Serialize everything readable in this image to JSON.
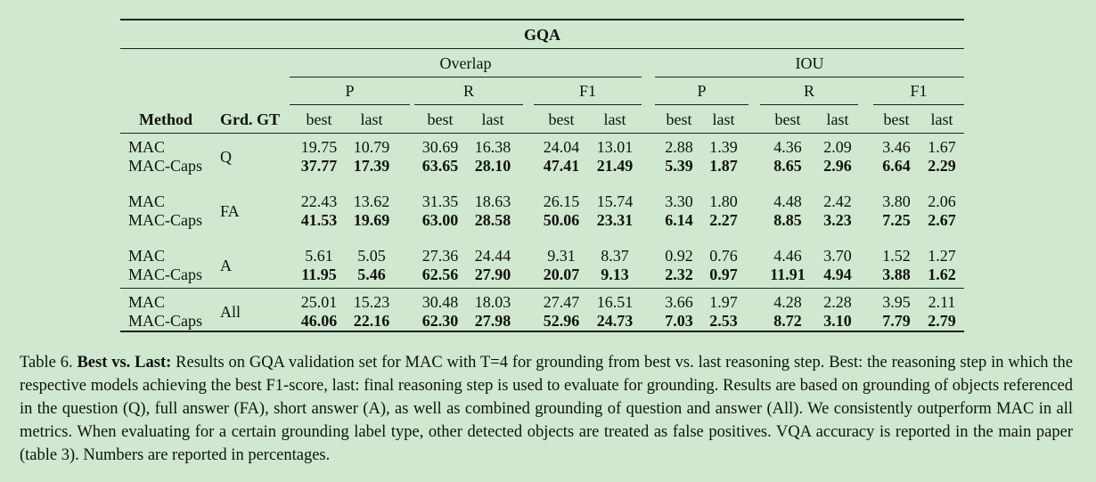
{
  "dataset": "GQA",
  "groups": [
    "Overlap",
    "IOU"
  ],
  "metrics": [
    "P",
    "R",
    "F1"
  ],
  "col_labels": {
    "method": "Method",
    "grd_gt": "Grd. GT",
    "best": "best",
    "last": "last"
  },
  "rows": [
    {
      "grd_gt": "Q",
      "mac": {
        "method": "MAC",
        "values": [
          "19.75",
          "10.79",
          "30.69",
          "16.38",
          "24.04",
          "13.01",
          "2.88",
          "1.39",
          "4.36",
          "2.09",
          "3.46",
          "1.67"
        ]
      },
      "caps": {
        "method": "MAC-Caps",
        "values": [
          "37.77",
          "17.39",
          "63.65",
          "28.10",
          "47.41",
          "21.49",
          "5.39",
          "1.87",
          "8.65",
          "2.96",
          "6.64",
          "2.29"
        ]
      }
    },
    {
      "grd_gt": "FA",
      "mac": {
        "method": "MAC",
        "values": [
          "22.43",
          "13.62",
          "31.35",
          "18.63",
          "26.15",
          "15.74",
          "3.30",
          "1.80",
          "4.48",
          "2.42",
          "3.80",
          "2.06"
        ]
      },
      "caps": {
        "method": "MAC-Caps",
        "values": [
          "41.53",
          "19.69",
          "63.00",
          "28.58",
          "50.06",
          "23.31",
          "6.14",
          "2.27",
          "8.85",
          "3.23",
          "7.25",
          "2.67"
        ]
      }
    },
    {
      "grd_gt": "A",
      "mac": {
        "method": "MAC",
        "values": [
          "5.61",
          "5.05",
          "27.36",
          "24.44",
          "9.31",
          "8.37",
          "0.92",
          "0.76",
          "4.46",
          "3.70",
          "1.52",
          "1.27"
        ]
      },
      "caps": {
        "method": "MAC-Caps",
        "values": [
          "11.95",
          "5.46",
          "62.56",
          "27.90",
          "20.07",
          "9.13",
          "2.32",
          "0.97",
          "11.91",
          "4.94",
          "3.88",
          "1.62"
        ]
      }
    },
    {
      "grd_gt": "All",
      "mac": {
        "method": "MAC",
        "values": [
          "25.01",
          "15.23",
          "30.48",
          "18.03",
          "27.47",
          "16.51",
          "3.66",
          "1.97",
          "4.28",
          "2.28",
          "3.95",
          "2.11"
        ]
      },
      "caps": {
        "method": "MAC-Caps",
        "values": [
          "46.06",
          "22.16",
          "62.30",
          "27.98",
          "52.96",
          "24.73",
          "7.03",
          "2.53",
          "8.72",
          "3.10",
          "7.79",
          "2.79"
        ]
      }
    }
  ],
  "caption": {
    "label": "Table 6.",
    "title": "Best vs.  Last:",
    "text": "Results on GQA validation set for MAC with T=4 for grounding from best vs.  last reasoning step.  Best: the reasoning step in which the respective models achieving the best F1-score, last: final reasoning step is used to evaluate for grounding. Results are based on grounding of objects referenced in the question (Q), full answer (FA), short answer (A), as well as combined grounding of question and answer (All). We consistently outperform MAC in all metrics. When evaluating for a certain grounding label type, other detected objects are treated as false positives. VQA accuracy is reported in the main paper (table 3). Numbers are reported in percentages."
  }
}
